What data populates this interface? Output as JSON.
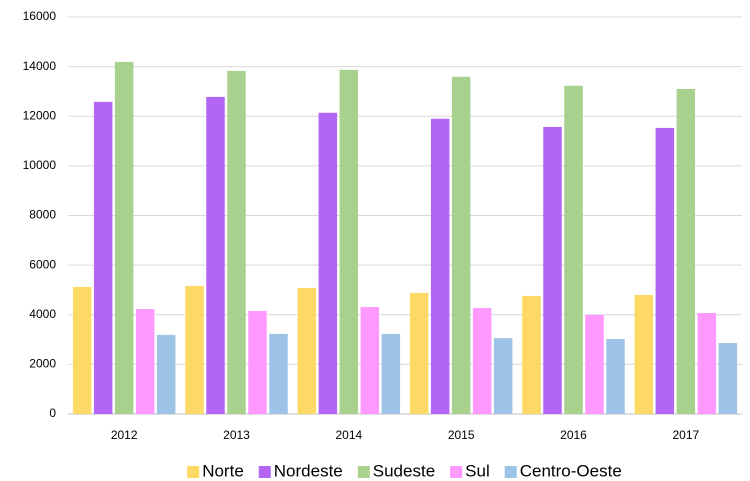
{
  "chart_data": {
    "type": "bar",
    "categories": [
      "2012",
      "2013",
      "2014",
      "2015",
      "2016",
      "2017"
    ],
    "series": [
      {
        "name": "Norte",
        "color": "#ffd966",
        "values": [
          5120,
          5160,
          5080,
          4880,
          4760,
          4800
        ]
      },
      {
        "name": "Nordeste",
        "color": "#b366f5",
        "values": [
          12580,
          12780,
          12140,
          11900,
          11570,
          11530
        ]
      },
      {
        "name": "Sudeste",
        "color": "#a9d18e",
        "values": [
          14190,
          13830,
          13870,
          13590,
          13230,
          13100
        ]
      },
      {
        "name": "Sul",
        "color": "#ff99ff",
        "values": [
          4230,
          4150,
          4310,
          4270,
          3990,
          4070
        ]
      },
      {
        "name": "Centro-Oeste",
        "color": "#9dc3e6",
        "values": [
          3190,
          3230,
          3230,
          3060,
          3020,
          2860
        ]
      }
    ],
    "ylim": [
      0,
      16000
    ],
    "yticks": [
      0,
      2000,
      4000,
      6000,
      8000,
      10000,
      12000,
      14000,
      16000
    ],
    "grid": true,
    "legend": "bottom"
  }
}
